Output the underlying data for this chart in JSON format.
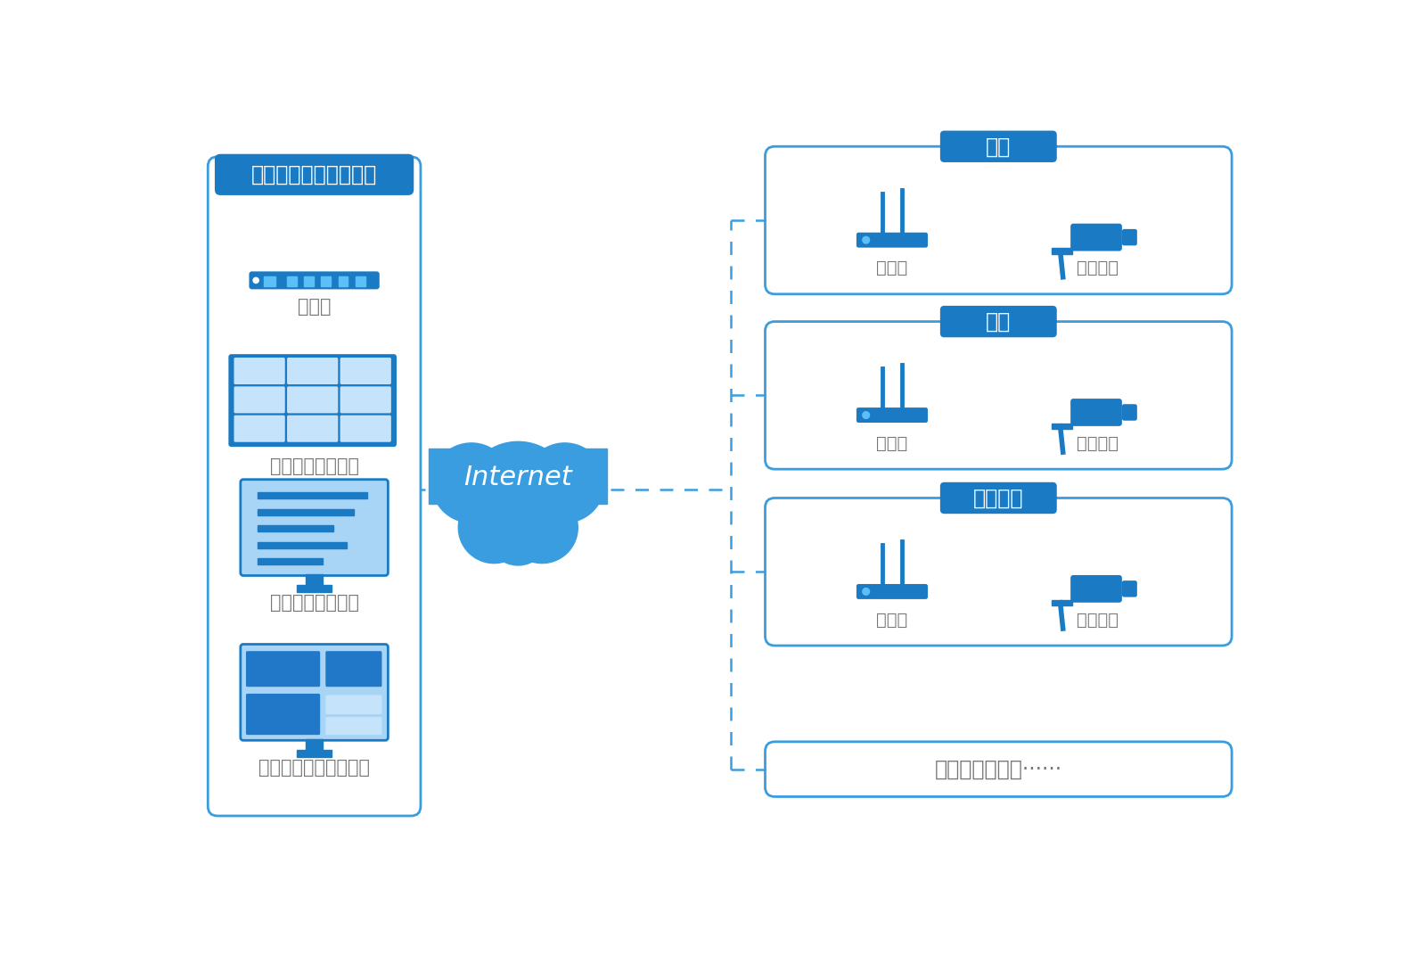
{
  "bg_color": "#ffffff",
  "blue_dark": "#1a7bc4",
  "blue_medium": "#3a9de0",
  "blue_light": "#a8d4f5",
  "blue_lighter": "#c5e3fa",
  "blue_box": "#2178c8",
  "text_gray": "#777777",
  "text_white": "#ffffff",
  "left_panel_title": "城市交通信息管理中心",
  "left_items": [
    "路由器",
    "视频监控管理系统",
    "车载客流统计系统",
    "车辆调度运营管理系统"
  ],
  "cloud_text": "Internet",
  "right_panels": [
    "道路",
    "车站",
    "电子站牌"
  ],
  "right_item_labels": [
    "路由器",
    "监控设备"
  ],
  "bottom_text": "各路段监控设备······"
}
